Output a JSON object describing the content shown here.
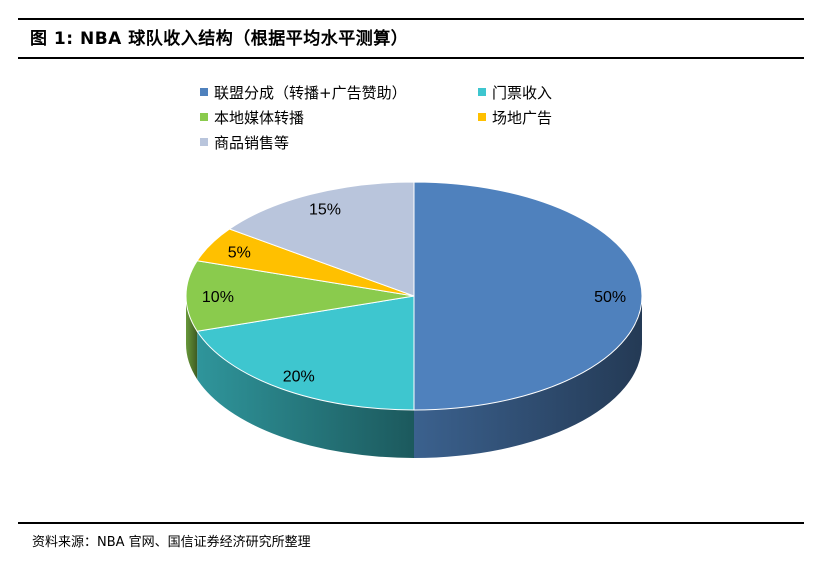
{
  "figure_title": "图 1:  NBA 球队收入结构（根据平均水平测算）",
  "source": "资料来源：NBA 官网、国信证券经济研究所整理",
  "chart_data": {
    "type": "pie",
    "title": "图 1:  NBA 球队收入结构（根据平均水平测算）",
    "legend_position": "top",
    "slices": [
      {
        "name": "联盟分成（转播+广告赞助）",
        "value": 50,
        "label": "50%",
        "color": "#4F81BD"
      },
      {
        "name": "门票收入",
        "value": 20,
        "label": "20%",
        "color": "#3EC6CF"
      },
      {
        "name": "本地媒体转播",
        "value": 10,
        "label": "10%",
        "color": "#8ACB4D"
      },
      {
        "name": "场地广告",
        "value": 5,
        "label": "5%",
        "color": "#FFC000"
      },
      {
        "name": "商品销售等",
        "value": 15,
        "label": "15%",
        "color": "#B9C5DC"
      }
    ]
  }
}
